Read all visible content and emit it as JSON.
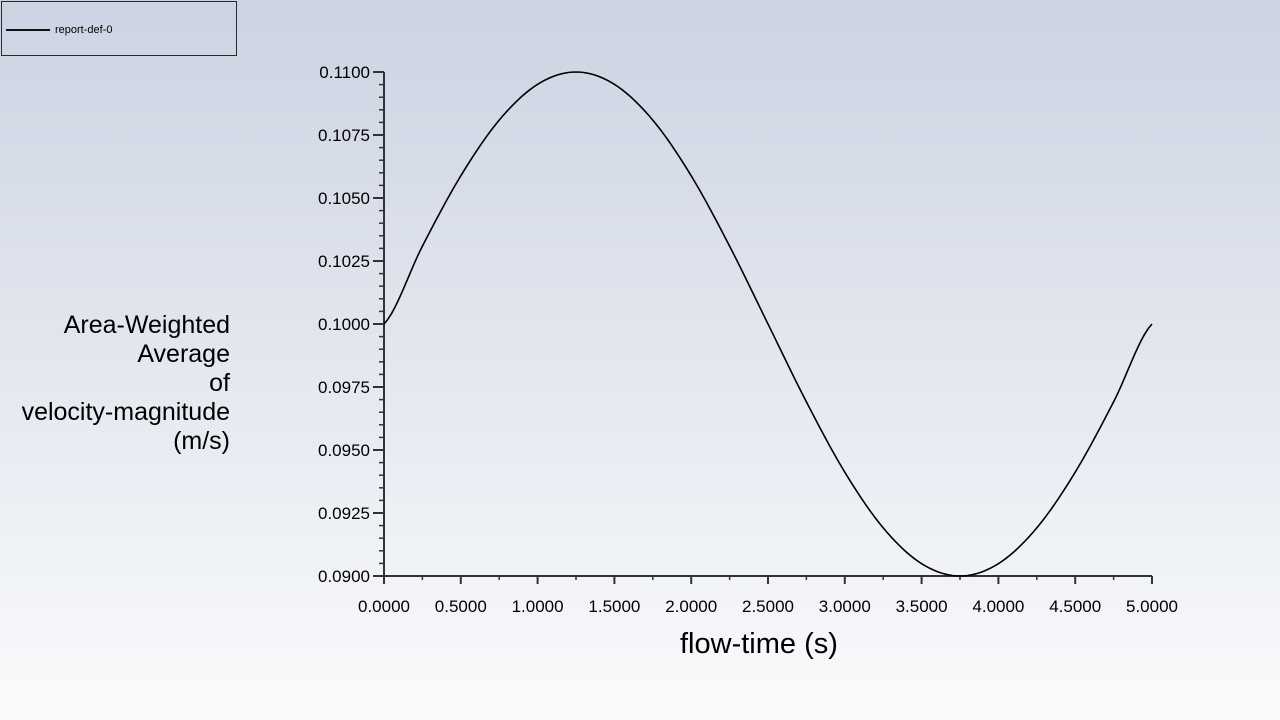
{
  "legend": {
    "entries": [
      {
        "label": "report-def-0",
        "color": "#000000"
      }
    ]
  },
  "axes": {
    "ylabel_lines": [
      "Area-Weighted",
      "Average",
      "of",
      "velocity-magnitude",
      "(m/s)"
    ],
    "xlabel": "flow-time (s)"
  },
  "chart_data": {
    "type": "line",
    "title": "",
    "xlabel": "flow-time (s)",
    "ylabel": "Area-Weighted Average of velocity-magnitude (m/s)",
    "xlim": [
      0.0,
      5.0
    ],
    "ylim": [
      0.09,
      0.11
    ],
    "xticks": [
      "0.0000",
      "0.5000",
      "1.0000",
      "1.5000",
      "2.0000",
      "2.5000",
      "3.0000",
      "3.5000",
      "4.0000",
      "4.5000",
      "5.0000"
    ],
    "yticks": [
      "0.0900",
      "0.0925",
      "0.0950",
      "0.0975",
      "0.1000",
      "0.1025",
      "0.1050",
      "0.1075",
      "0.1100"
    ],
    "grid": false,
    "legend_position": "top-left",
    "series": [
      {
        "name": "report-def-0",
        "color": "#000000",
        "x": [
          0.0,
          0.25,
          0.5,
          0.75,
          1.0,
          1.25,
          1.5,
          1.75,
          2.0,
          2.25,
          2.5,
          2.75,
          3.0,
          3.25,
          3.5,
          3.75,
          4.0,
          4.25,
          4.5,
          4.75,
          5.0
        ],
        "y": [
          0.1,
          0.10309,
          0.10588,
          0.10809,
          0.10951,
          0.11,
          0.10951,
          0.10809,
          0.10588,
          0.10309,
          0.1,
          0.09691,
          0.09412,
          0.09191,
          0.09049,
          0.09,
          0.09049,
          0.09191,
          0.09412,
          0.09691,
          0.1
        ]
      }
    ]
  }
}
